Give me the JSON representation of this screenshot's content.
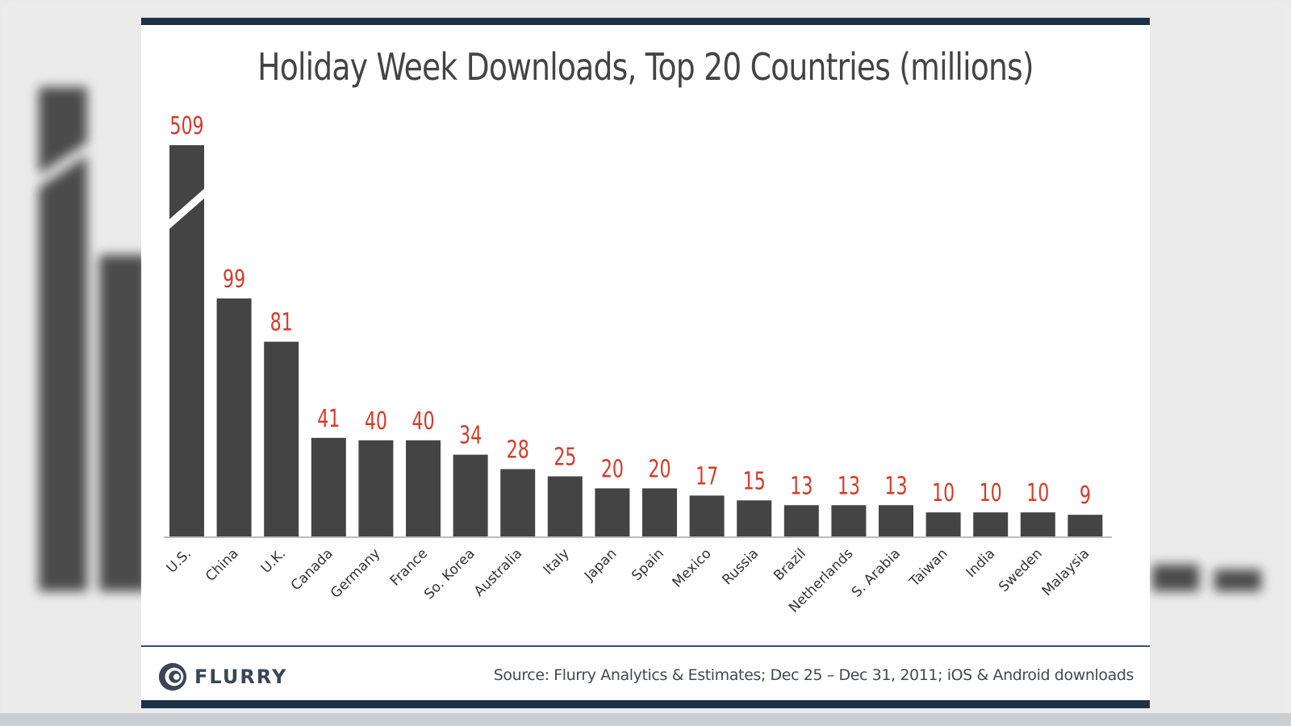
{
  "chart_data": {
    "type": "bar",
    "title": "Holiday Week Downloads, Top 20 Countries (millions)",
    "categories": [
      "U.S.",
      "China",
      "U.K.",
      "Canada",
      "Germany",
      "France",
      "So. Korea",
      "Australia",
      "Italy",
      "Japan",
      "Spain",
      "Mexico",
      "Russia",
      "Brazil",
      "Netherlands",
      "S. Arabia",
      "Taiwan",
      "India",
      "Sweden",
      "Malaysia"
    ],
    "values": [
      509,
      99,
      81,
      41,
      40,
      40,
      34,
      28,
      25,
      20,
      20,
      17,
      15,
      13,
      13,
      13,
      10,
      10,
      10,
      9
    ],
    "axis_break": "U.S.",
    "bar_color": "#444444",
    "label_color": "#d73a27",
    "grid": false
  },
  "footer": {
    "brand": "FLURRY",
    "source": "Source: Flurry Analytics & Estimates; Dec 25 – Dec 31, 2011; iOS & Android downloads"
  },
  "colors": {
    "rule": "#1f3147"
  }
}
